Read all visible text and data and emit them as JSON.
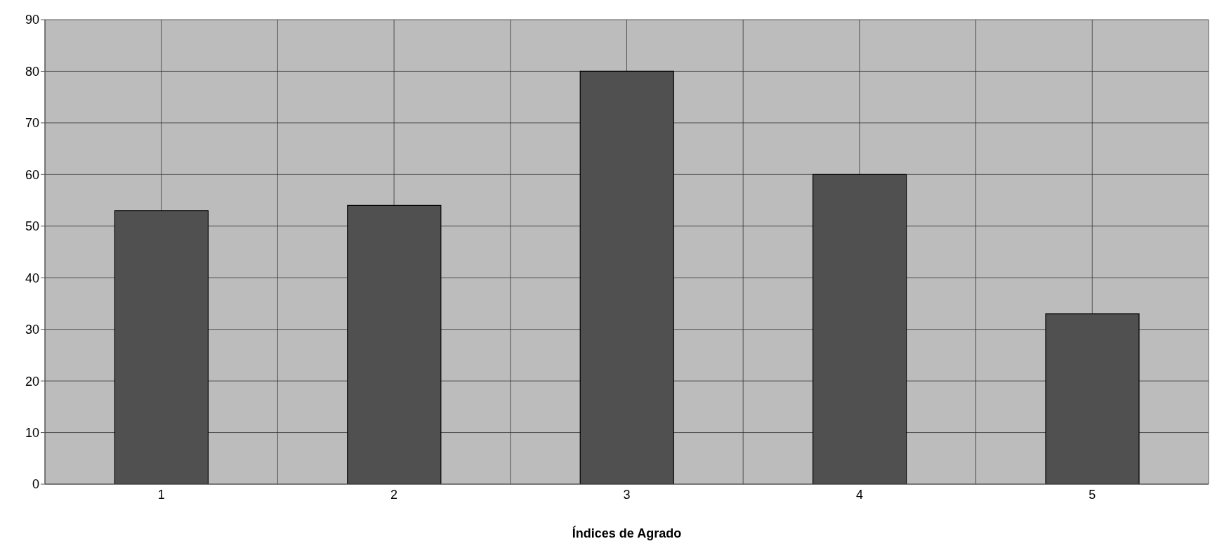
{
  "chart_data": {
    "type": "bar",
    "xlabel": "Índices de Agrado",
    "categories": [
      "1",
      "2",
      "3",
      "4",
      "5"
    ],
    "values": [
      53,
      54,
      80,
      60,
      33
    ],
    "color": "#505050",
    "ylim": [
      0,
      90
    ],
    "yticks": [
      0,
      10,
      20,
      30,
      40,
      50,
      60,
      70,
      80,
      90
    ],
    "grid": true
  }
}
